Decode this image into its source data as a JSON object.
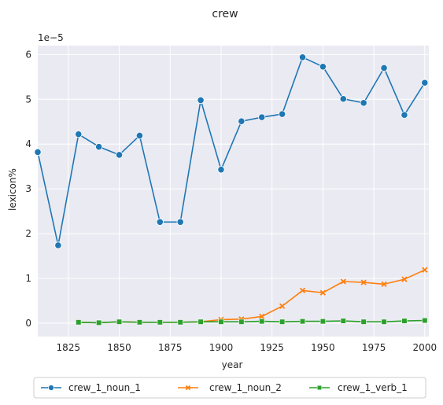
{
  "chart_data": {
    "type": "line",
    "title": "crew",
    "xlabel": "year",
    "ylabel": "lexicon%",
    "y_multiplier_label": "1e−5",
    "xlim": [
      1810,
      2002
    ],
    "ylim": [
      -0.3,
      6.2
    ],
    "x_ticks": [
      1825,
      1850,
      1875,
      1900,
      1925,
      1950,
      1975,
      2000
    ],
    "y_ticks": [
      0,
      1,
      2,
      3,
      4,
      5,
      6
    ],
    "grid": true,
    "legend_position": "bottom",
    "series": [
      {
        "name": "crew_1_noun_1",
        "color": "#1f77b4",
        "marker": "circle",
        "x": [
          1810,
          1820,
          1830,
          1840,
          1850,
          1860,
          1870,
          1880,
          1890,
          1900,
          1910,
          1920,
          1930,
          1940,
          1950,
          1960,
          1970,
          1980,
          1990,
          2000
        ],
        "y": [
          3.82,
          1.74,
          4.22,
          3.94,
          3.76,
          4.19,
          2.26,
          2.26,
          4.98,
          3.43,
          4.51,
          4.6,
          4.67,
          5.94,
          5.73,
          5.01,
          4.92,
          5.7,
          4.65,
          5.37
        ]
      },
      {
        "name": "crew_1_noun_2",
        "color": "#ff7f0e",
        "marker": "x",
        "x": [
          1830,
          1840,
          1850,
          1860,
          1870,
          1880,
          1890,
          1900,
          1910,
          1920,
          1930,
          1940,
          1950,
          1960,
          1970,
          1980,
          1990,
          2000
        ],
        "y": [
          0.02,
          0.01,
          0.03,
          0.02,
          0.02,
          0.02,
          0.03,
          0.08,
          0.09,
          0.15,
          0.38,
          0.73,
          0.68,
          0.93,
          0.91,
          0.87,
          0.98,
          1.19
        ]
      },
      {
        "name": "crew_1_verb_1",
        "color": "#2ca02c",
        "marker": "square",
        "x": [
          1830,
          1840,
          1850,
          1860,
          1870,
          1880,
          1890,
          1900,
          1910,
          1920,
          1930,
          1940,
          1950,
          1960,
          1970,
          1980,
          1990,
          2000
        ],
        "y": [
          0.02,
          0.01,
          0.03,
          0.02,
          0.02,
          0.02,
          0.03,
          0.03,
          0.03,
          0.04,
          0.03,
          0.04,
          0.04,
          0.05,
          0.03,
          0.03,
          0.05,
          0.06
        ]
      }
    ]
  }
}
